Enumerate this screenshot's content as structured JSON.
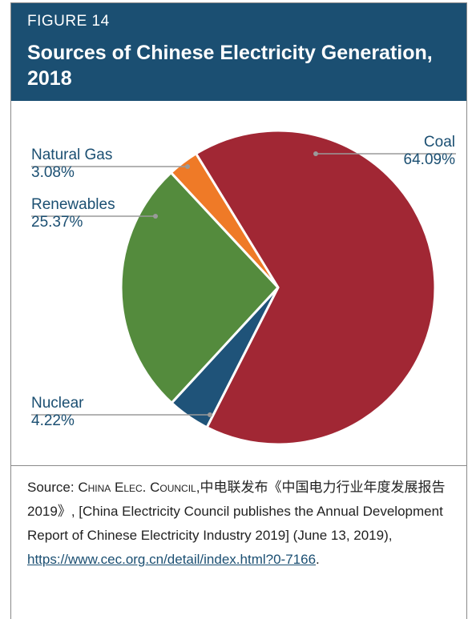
{
  "figure": {
    "label": "FIGURE 14",
    "title": "Sources of Chinese Electricity Generation, 2018"
  },
  "chart_data": {
    "type": "pie",
    "title": "Sources of Chinese Electricity Generation, 2018",
    "categories": [
      "Coal",
      "Nuclear",
      "Renewables",
      "Natural Gas"
    ],
    "values": [
      64.09,
      4.22,
      25.37,
      3.08
    ],
    "value_labels": [
      "64.09%",
      "4.22%",
      "25.37%",
      "3.08%"
    ],
    "colors": [
      "#a12734",
      "#1f5379",
      "#548b3d",
      "#ef7a27"
    ]
  },
  "source": {
    "prefix": "Source: ",
    "org": "China Elec. Council",
    "text": ",中电联发布《中国电力行业年度发展报告2019》, [China Electricity Council publishes the Annual Development Report of Chinese Electricity Industry 2019] (June 13, 2019), ",
    "link": "https://www.cec.org.cn/detail/index.html?0-7166",
    "suffix": "."
  },
  "colors": {
    "header_bg": "#1b4f72",
    "label_text": "#1b4f72",
    "leader_line": "#9a9a9a"
  }
}
